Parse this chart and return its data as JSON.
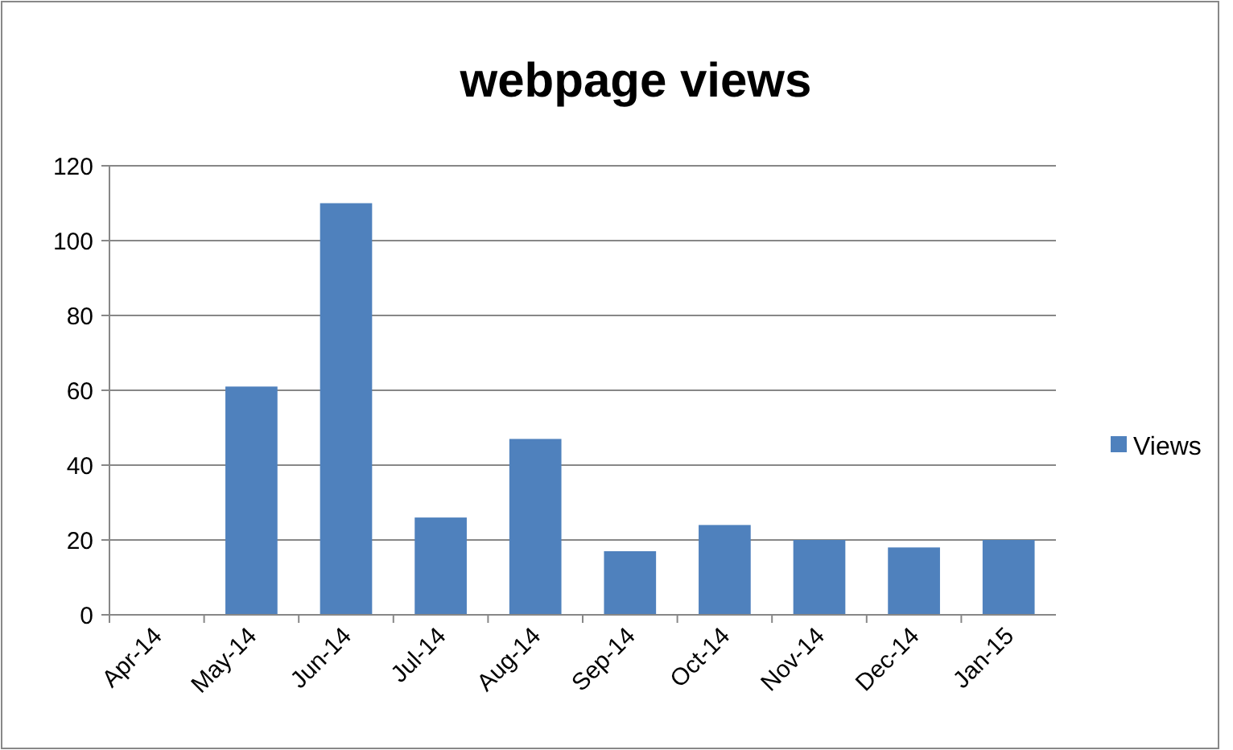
{
  "chart_data": {
    "type": "bar",
    "title": "webpage views",
    "categories": [
      "Apr-14",
      "May-14",
      "Jun-14",
      "Jul-14",
      "Aug-14",
      "Sep-14",
      "Oct-14",
      "Nov-14",
      "Dec-14",
      "Jan-15"
    ],
    "series": [
      {
        "name": "Views",
        "color": "#4f81bd",
        "values": [
          0,
          61,
          110,
          26,
          47,
          17,
          24,
          20,
          18,
          20
        ]
      }
    ],
    "ylim": [
      0,
      120
    ],
    "yticks": [
      0,
      20,
      40,
      60,
      80,
      100,
      120
    ],
    "grid": "y",
    "legend": "right"
  }
}
